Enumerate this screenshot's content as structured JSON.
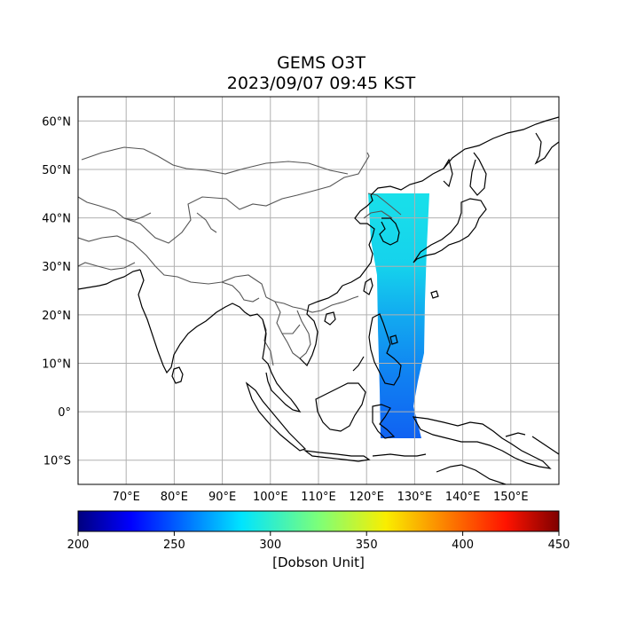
{
  "title": "GEMS O3T",
  "subtitle": "2023/09/07 09:45 KST",
  "map": {
    "lon_range": [
      60,
      160
    ],
    "lat_range": [
      -15,
      65
    ],
    "lon_ticks": [
      70,
      80,
      90,
      100,
      110,
      120,
      130,
      140,
      150
    ],
    "lat_ticks": [
      60,
      50,
      40,
      30,
      20,
      10,
      0,
      -10
    ],
    "lon_tick_labels": [
      "70°E",
      "80°E",
      "90°E",
      "100°E",
      "110°E",
      "120°E",
      "130°E",
      "140°E",
      "150°E"
    ],
    "lat_tick_labels": [
      "60°N",
      "50°N",
      "40°N",
      "30°N",
      "20°N",
      "10°N",
      "0°",
      "10°S"
    ],
    "grid": true,
    "gridline_color": "#b0b0b0",
    "coastline_color": "#000000",
    "border_color": "#555555",
    "swath_colors_top_to_bottom": [
      "#19e6e6",
      "#10d8ee",
      "#10b8f0",
      "#1090f0",
      "#1070f0",
      "#1060f0"
    ]
  },
  "colorbar": {
    "min": 200,
    "max": 450,
    "ticks": [
      "200",
      "250",
      "300",
      "350",
      "400",
      "450"
    ],
    "label": "[Dobson Unit]",
    "colormap": "jet"
  }
}
